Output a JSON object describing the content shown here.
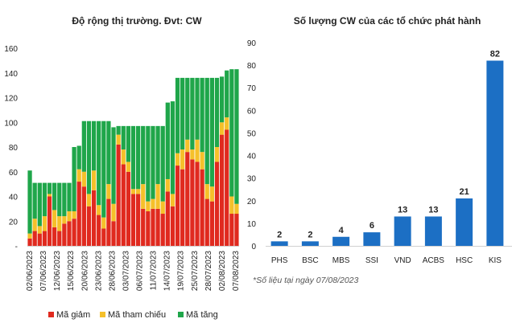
{
  "colors": {
    "decrease": "#e02a1f",
    "reference": "#f5c02a",
    "increase": "#1fa64a",
    "bar_blue": "#1c6fc4"
  },
  "chart_data": [
    {
      "type": "bar",
      "stacked": true,
      "title": "Độ rộng thị trường. Đvt: CW",
      "ylim": [
        0,
        160
      ],
      "yticks": [
        "160",
        "140",
        "120",
        "100",
        "80",
        "60",
        "40",
        "20",
        "-"
      ],
      "xtick_labels": [
        "02/06/2023",
        "07/06/2023",
        "12/06/2023",
        "15/06/2023",
        "20/06/2023",
        "23/06/2023",
        "28/06/2023",
        "03/07/2023",
        "06/07/2023",
        "11/07/2023",
        "14/07/2023",
        "19/07/2023",
        "25/07/2023",
        "28/07/2023",
        "02/08/2023",
        "07/08/2023"
      ],
      "grid": false,
      "legend_position": "bottom",
      "series": [
        {
          "name": "Mã giảm",
          "color_key": "decrease",
          "values": [
            6,
            12,
            10,
            12,
            40,
            15,
            12,
            18,
            20,
            22,
            52,
            48,
            32,
            45,
            25,
            14,
            38,
            20,
            82,
            66,
            60,
            42,
            42,
            30,
            28,
            30,
            30,
            26,
            44,
            32,
            65,
            62,
            76,
            70,
            68,
            62,
            38,
            36,
            68,
            90,
            94,
            26,
            26
          ]
        },
        {
          "name": "Mã tham chiếu",
          "color_key": "reference",
          "values": [
            4,
            10,
            6,
            12,
            2,
            14,
            12,
            6,
            8,
            6,
            10,
            12,
            10,
            16,
            8,
            9,
            12,
            14,
            8,
            12,
            8,
            4,
            4,
            20,
            8,
            8,
            20,
            10,
            10,
            10,
            10,
            16,
            10,
            8,
            18,
            14,
            12,
            12,
            12,
            10,
            10,
            14,
            8
          ]
        },
        {
          "name": "Mã tăng",
          "color_key": "increase",
          "values": [
            51,
            29,
            35,
            27,
            9,
            22,
            27,
            27,
            23,
            52,
            19,
            41,
            59,
            40,
            68,
            78,
            51,
            62,
            7,
            19,
            29,
            51,
            51,
            47,
            61,
            59,
            47,
            61,
            62,
            75,
            61,
            58,
            50,
            58,
            50,
            60,
            86,
            88,
            56,
            37,
            38,
            103,
            109
          ]
        }
      ]
    },
    {
      "type": "bar",
      "title": "Số lượng CW của các tổ chức phát hành",
      "categories": [
        "PHS",
        "BSC",
        "MBS",
        "SSI",
        "VND",
        "ACBS",
        "HSC",
        "KIS"
      ],
      "values": [
        2,
        2,
        4,
        6,
        13,
        13,
        21,
        82
      ],
      "ylim": [
        0,
        90
      ],
      "yticks": [
        "90",
        "80",
        "70",
        "60",
        "50",
        "40",
        "30",
        "20",
        "10",
        "0"
      ],
      "grid": false,
      "color_key": "bar_blue"
    }
  ],
  "footnote": "*Số liệu tại ngày 07/08/2023"
}
